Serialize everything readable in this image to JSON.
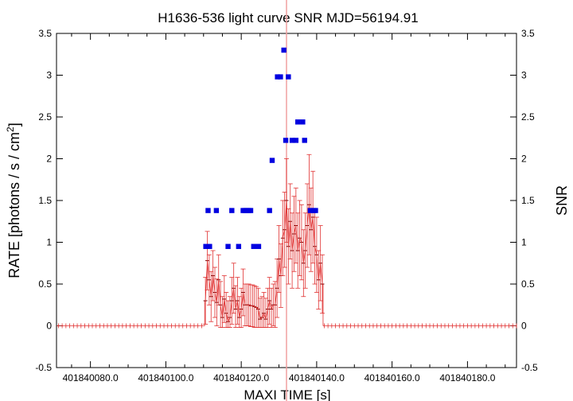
{
  "chart_data": {
    "type": "scatter",
    "title": "H1636-536 light curve  SNR MJD=56194.91",
    "xlabel": "MAXI TIME [s]",
    "ylabel_left": "RATE [photons / s / cm",
    "ylabel_left_sup": "2",
    "ylabel_left_tail": "]",
    "ylabel_right": "SNR",
    "x_offset": 401840000,
    "xlim": [
      71,
      193
    ],
    "ylim": [
      -0.5,
      3.5
    ],
    "x_ticks": [
      80,
      100,
      120,
      140,
      160,
      180
    ],
    "x_tick_labels": [
      "401840080.0",
      "401840100.0",
      "401840120.0",
      "401840140.0",
      "401840160.0",
      "401840180.0"
    ],
    "y_ticks": [
      -0.5,
      0,
      0.5,
      1,
      1.5,
      2,
      2.5,
      3,
      3.5
    ],
    "y_tick_labels": [
      "-0.5",
      "0",
      "0.5",
      "1",
      "1.5",
      "2",
      "2.5",
      "3",
      "3.5"
    ],
    "marker_time": 132.0,
    "colors": {
      "rate": "#e03030",
      "snr": "#0000e0",
      "marker": "#f0a0a0"
    },
    "rate_series": {
      "name": "RATE",
      "x": [
        110.5,
        111,
        111.5,
        112,
        112.5,
        113,
        113.5,
        114,
        114.5,
        115,
        115.5,
        116,
        116.5,
        117,
        117.5,
        118,
        118.5,
        119,
        119.5,
        120,
        120.5,
        121,
        121.5,
        122,
        122.5,
        123,
        123.5,
        124,
        124.5,
        125,
        125.5,
        126,
        126.5,
        127,
        127.5,
        128,
        128.5,
        129,
        129.5,
        130,
        130.5,
        131,
        131.5,
        132,
        132.5,
        133,
        133.5,
        134,
        134.5,
        135,
        135.5,
        136,
        136.5,
        137,
        137.5,
        138,
        138.5,
        139,
        139.5,
        140,
        140.5,
        141,
        141.5
      ],
      "y": [
        0.3,
        0.78,
        0.55,
        0.35,
        0.6,
        0.4,
        0.28,
        0.55,
        0.25,
        0.1,
        0.32,
        0.15,
        0.05,
        0.1,
        0.3,
        0.45,
        0.2,
        0.3,
        0.1,
        0.2,
        0.4,
        0.25,
        0.25,
        0.25,
        0.24,
        0.24,
        0.23,
        0.22,
        0.2,
        0.08,
        0.1,
        0.15,
        0.08,
        0.2,
        0.3,
        0.2,
        0.25,
        0.25,
        0.45,
        0.8,
        0.6,
        1.05,
        1.15,
        1.5,
        0.95,
        1.25,
        0.9,
        1.1,
        1.2,
        0.9,
        1.05,
        1.0,
        0.75,
        0.9,
        1.2,
        1.45,
        1.15,
        1.3,
        0.95,
        0.85,
        0.55,
        0.75,
        0.5
      ],
      "err": [
        0.28,
        0.35,
        0.3,
        0.3,
        0.3,
        0.3,
        0.28,
        0.3,
        0.28,
        0.25,
        0.28,
        0.25,
        0.25,
        0.25,
        0.28,
        0.3,
        0.28,
        0.28,
        0.25,
        0.25,
        0.28,
        0.25,
        0.25,
        0.25,
        0.25,
        0.25,
        0.25,
        0.25,
        0.25,
        0.25,
        0.25,
        0.25,
        0.25,
        0.25,
        0.28,
        0.25,
        0.25,
        0.28,
        0.35,
        0.4,
        0.38,
        0.45,
        0.45,
        0.5,
        0.45,
        0.45,
        0.45,
        0.45,
        0.45,
        0.45,
        0.45,
        0.45,
        0.4,
        0.45,
        0.5,
        0.6,
        0.5,
        0.55,
        0.45,
        0.45,
        0.35,
        0.45,
        0.35
      ]
    },
    "snr_series": {
      "name": "SNR",
      "x": [
        110.6,
        111.2,
        111.6,
        113.4,
        116.5,
        117.5,
        119.3,
        120.5,
        121,
        121.5,
        122,
        122.5,
        123.3,
        124.6,
        127.5,
        128.2,
        129.6,
        130.4,
        131.3,
        131.8,
        132.5,
        133.5,
        134.5,
        135,
        136.3,
        136.8,
        138.3,
        139.2,
        139.7
      ],
      "y": [
        0.95,
        1.38,
        0.95,
        1.38,
        0.95,
        1.38,
        0.95,
        1.38,
        1.38,
        1.38,
        1.38,
        1.38,
        0.95,
        0.95,
        1.38,
        1.98,
        2.98,
        2.98,
        3.3,
        2.22,
        2.98,
        2.22,
        2.22,
        2.44,
        2.44,
        2.22,
        1.38,
        1.38,
        1.38
      ]
    }
  }
}
